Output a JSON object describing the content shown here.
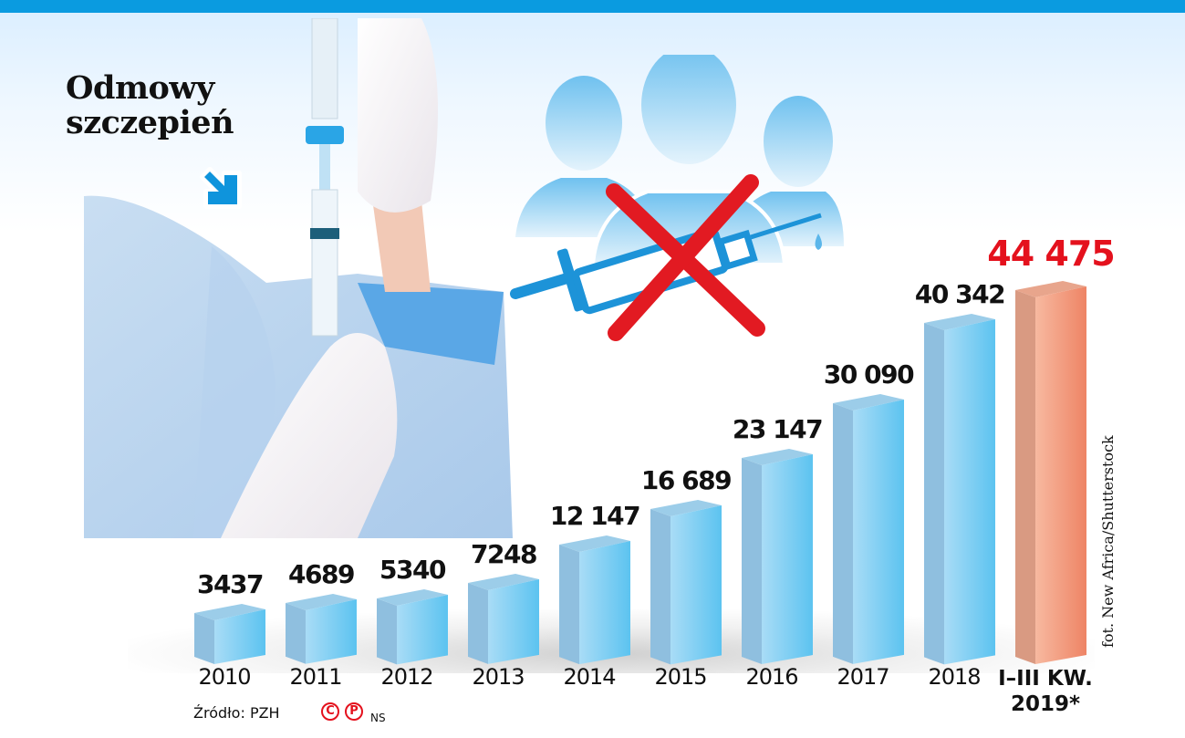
{
  "header": {
    "title_line1": "Odmowy",
    "title_line2": "szczepień",
    "accent_color": "#0a9be0"
  },
  "icons": {
    "arrow": "arrow-down-right-icon",
    "people_group": "people-group-icon",
    "syringe": "syringe-icon",
    "cross": "red-x-icon"
  },
  "chart_data": {
    "type": "bar",
    "title": "Odmowy szczepień",
    "xlabel": "",
    "ylabel": "",
    "categories": [
      "2010",
      "2011",
      "2012",
      "2013",
      "2014",
      "2015",
      "2016",
      "2017",
      "2018",
      "I–III KW. 2019*"
    ],
    "values": [
      3437,
      4689,
      5340,
      7248,
      12147,
      16689,
      23147,
      30090,
      40342,
      44475
    ],
    "value_labels": [
      "3437",
      "4689",
      "5340",
      "7248",
      "12 147",
      "16 689",
      "23 147",
      "30 090",
      "40 342",
      "44 475"
    ],
    "highlight_index": 9,
    "colors": {
      "bar": "#8ecff0",
      "highlight_bar": "#f0957a",
      "highlight_label": "#e4111d"
    },
    "ylim": [
      0,
      50000
    ],
    "grid": false,
    "legend": "none",
    "style": "3d-columns"
  },
  "labels": {
    "years": [
      "2010",
      "2011",
      "2012",
      "2013",
      "2014",
      "2015",
      "2016",
      "2017",
      "2018"
    ],
    "last_line1": "I–III KW.",
    "last_line2": "2019*"
  },
  "footer": {
    "source": "Źródło: PZH",
    "copyright_symbol": "C",
    "phono_symbol": "P",
    "agency": "NS",
    "photo_credit": "fot. New Africa/Shutterstock"
  }
}
